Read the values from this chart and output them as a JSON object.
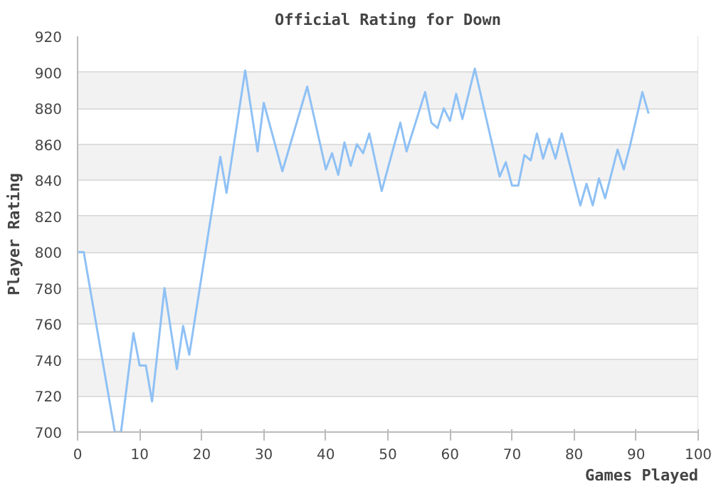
{
  "chart_data": {
    "type": "line",
    "title": "Official Rating for Down",
    "xlabel": "Games Played",
    "ylabel": "Player Rating",
    "x": [
      0,
      1,
      6,
      7,
      9,
      10,
      11,
      12,
      14,
      16,
      17,
      18,
      23,
      24,
      27,
      29,
      30,
      33,
      37,
      40,
      41,
      42,
      43,
      44,
      45,
      46,
      47,
      49,
      52,
      53,
      56,
      57,
      58,
      59,
      60,
      61,
      62,
      64,
      68,
      69,
      70,
      71,
      72,
      73,
      74,
      75,
      76,
      77,
      78,
      81,
      82,
      83,
      84,
      85,
      87,
      88,
      89,
      91,
      92
    ],
    "series": [
      {
        "color": "#8fc1f5",
        "values": [
          800,
          800,
          700,
          700,
          755,
          737,
          737,
          717,
          780,
          735,
          759,
          743,
          853,
          833,
          901,
          856,
          883,
          845,
          892,
          846,
          855,
          843,
          861,
          848,
          860,
          855,
          866,
          834,
          872,
          856,
          889,
          872,
          869,
          880,
          873,
          888,
          874,
          902,
          842,
          850,
          837,
          837,
          854,
          851,
          866,
          852,
          863,
          852,
          866,
          826,
          838,
          826,
          841,
          830,
          857,
          846,
          859,
          889,
          877
        ]
      }
    ],
    "xlim": [
      0,
      100
    ],
    "ylim": [
      700,
      920
    ],
    "xticks": [
      0,
      10,
      20,
      30,
      40,
      50,
      60,
      70,
      80,
      90,
      100
    ],
    "yticks": [
      700,
      720,
      740,
      760,
      780,
      800,
      820,
      840,
      860,
      880,
      900,
      920
    ],
    "grid": "y",
    "marker": "none",
    "line_style": "solid"
  }
}
